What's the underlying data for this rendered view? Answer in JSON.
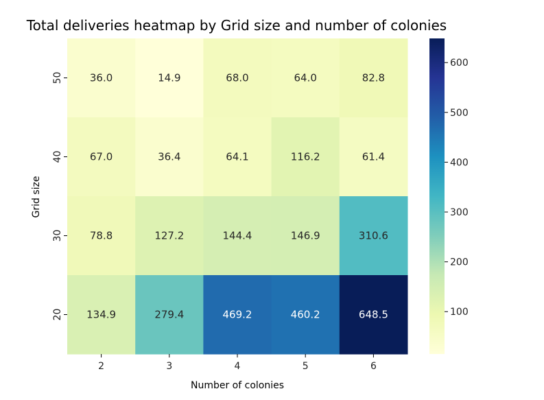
{
  "chart_data": {
    "type": "heatmap",
    "title": "Total deliveries heatmap by Grid size and number of colonies",
    "xlabel": "Number of colonies",
    "ylabel": "Grid size",
    "x_categories": [
      "2",
      "3",
      "4",
      "5",
      "6"
    ],
    "y_categories": [
      "50",
      "40",
      "30",
      "20"
    ],
    "values": [
      [
        36.0,
        14.9,
        68.0,
        64.0,
        82.8
      ],
      [
        67.0,
        36.4,
        64.1,
        116.2,
        61.4
      ],
      [
        78.8,
        127.2,
        144.4,
        146.9,
        310.6
      ],
      [
        134.9,
        279.4,
        469.2,
        460.2,
        648.5
      ]
    ],
    "value_labels": [
      [
        "36.0",
        "14.9",
        "68.0",
        "64.0",
        "82.8"
      ],
      [
        "67.0",
        "36.4",
        "64.1",
        "116.2",
        "61.4"
      ],
      [
        "78.8",
        "127.2",
        "144.4",
        "146.9",
        "310.6"
      ],
      [
        "134.9",
        "279.4",
        "469.2",
        "460.2",
        "648.5"
      ]
    ],
    "colorscale": "YlGnBu",
    "colorbar": {
      "range": [
        14.9,
        648.5
      ],
      "ticks": [
        100,
        200,
        300,
        400,
        500,
        600
      ],
      "tick_labels": [
        "100",
        "200",
        "300",
        "400",
        "500",
        "600"
      ]
    },
    "grid": false
  }
}
